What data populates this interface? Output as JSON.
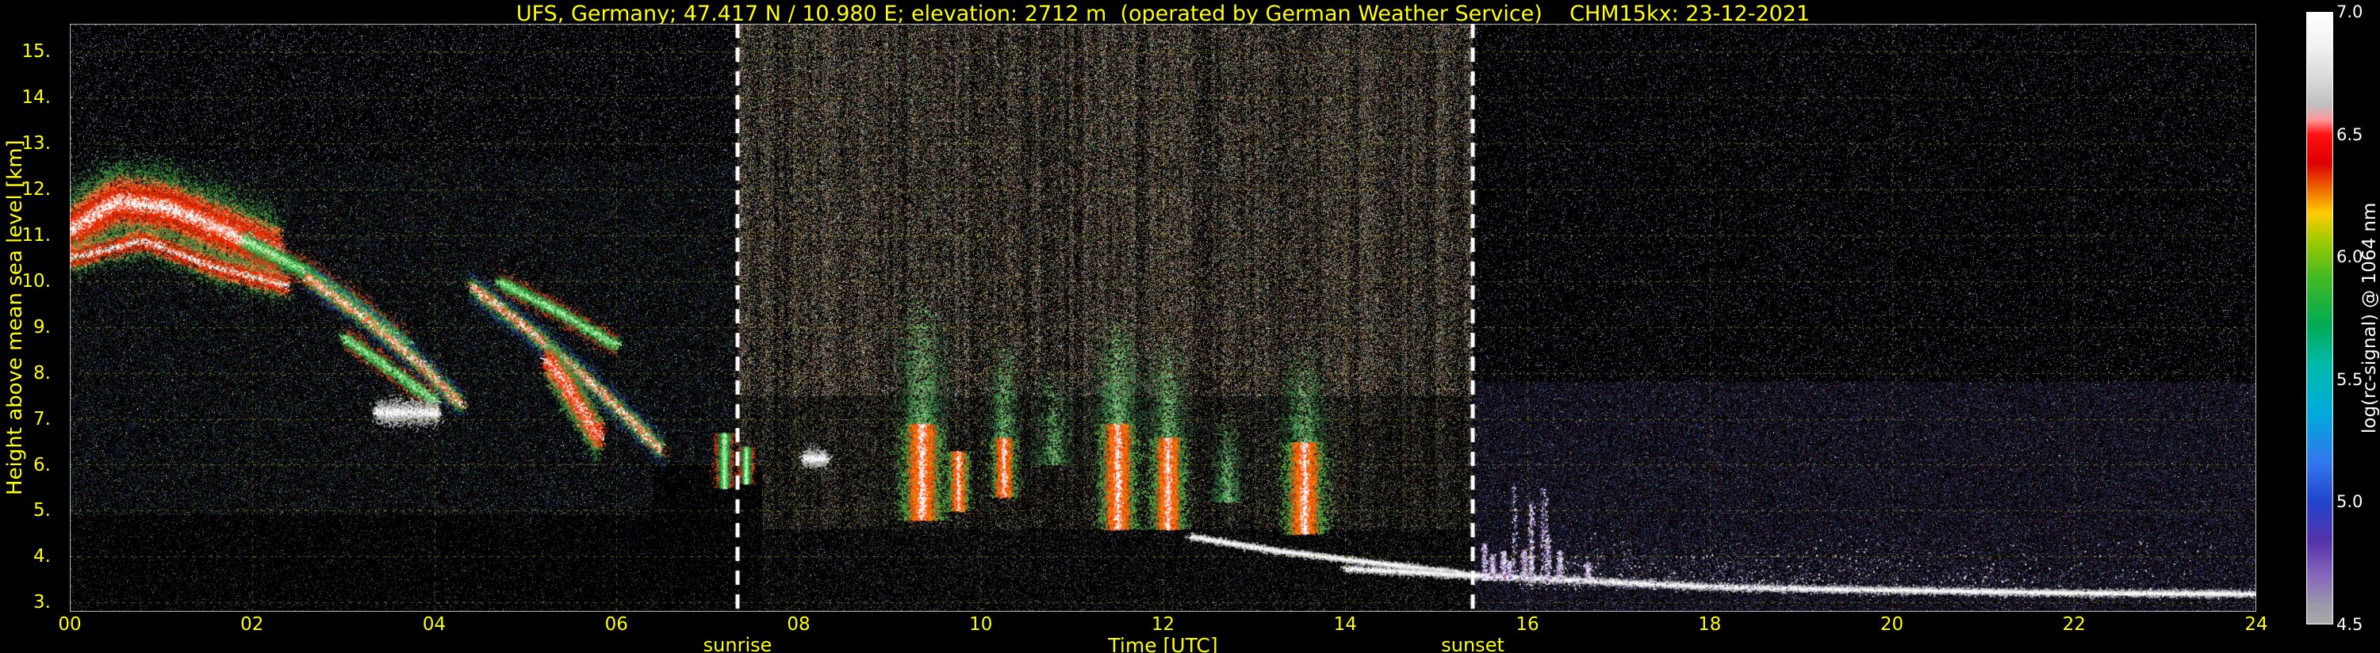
{
  "chart_data": {
    "type": "heatmap",
    "title": "UFS, Germany; 47.417 N / 10.980 E; elevation: 2712 m  (operated by German Weather Service)    CHM15kx: 23-12-2021",
    "xlabel": "Time [UTC]",
    "ylabel": "Height above mean sea level [km]",
    "x_range": [
      0,
      24
    ],
    "y_range_km": [
      2.8,
      15.6
    ],
    "grid": {
      "color": "#c8c800",
      "style": "dashed"
    },
    "x_ticks": [
      {
        "value": 0,
        "label": "00"
      },
      {
        "value": 2,
        "label": "02"
      },
      {
        "value": 4,
        "label": "04"
      },
      {
        "value": 6,
        "label": "06"
      },
      {
        "value": 8,
        "label": "08"
      },
      {
        "value": 10,
        "label": "10"
      },
      {
        "value": 12,
        "label": "12"
      },
      {
        "value": 14,
        "label": "14"
      },
      {
        "value": 16,
        "label": "16"
      },
      {
        "value": 18,
        "label": "18"
      },
      {
        "value": 20,
        "label": "20"
      },
      {
        "value": 22,
        "label": "22"
      },
      {
        "value": 24,
        "label": "24"
      }
    ],
    "y_ticks": [
      {
        "value": 15,
        "label": "15."
      },
      {
        "value": 14,
        "label": "14."
      },
      {
        "value": 13,
        "label": "13."
      },
      {
        "value": 12,
        "label": "12."
      },
      {
        "value": 11,
        "label": "11."
      },
      {
        "value": 10,
        "label": "10."
      },
      {
        "value": 9,
        "label": "9."
      },
      {
        "value": 8,
        "label": "8."
      },
      {
        "value": 7,
        "label": "7."
      },
      {
        "value": 6,
        "label": "6."
      },
      {
        "value": 5,
        "label": "5."
      },
      {
        "value": 4,
        "label": "4."
      },
      {
        "value": 3,
        "label": "3."
      }
    ],
    "sun": {
      "sunrise_hour": 7.33,
      "sunset_hour": 15.4,
      "sunrise_label": "sunrise",
      "sunset_label": "sunset",
      "line_color": "#ffffff"
    },
    "colorbar": {
      "label": "log(rc-signal) @ 1064 nm",
      "range": [
        4.5,
        7.0
      ],
      "tick_values": [
        7.0,
        6.5,
        6.0,
        5.5,
        5.0,
        4.5
      ],
      "tick_labels": [
        "7.0",
        "6.5",
        "6.0",
        "5.5",
        "5.0",
        "4.5"
      ],
      "stops": [
        {
          "v": 7.0,
          "c": "#ffffff"
        },
        {
          "v": 6.85,
          "c": "#f0f0f0"
        },
        {
          "v": 6.72,
          "c": "#d8d8d8"
        },
        {
          "v": 6.62,
          "c": "#bfbfbf"
        },
        {
          "v": 6.56,
          "c": "#ff9999"
        },
        {
          "v": 6.5,
          "c": "#ff1111"
        },
        {
          "v": 6.38,
          "c": "#dd0000"
        },
        {
          "v": 6.28,
          "c": "#ee6600"
        },
        {
          "v": 6.18,
          "c": "#ffcc00"
        },
        {
          "v": 6.08,
          "c": "#aacc00"
        },
        {
          "v": 5.92,
          "c": "#44bb22"
        },
        {
          "v": 5.72,
          "c": "#00aa55"
        },
        {
          "v": 5.56,
          "c": "#00bbaa"
        },
        {
          "v": 5.36,
          "c": "#00aadd"
        },
        {
          "v": 5.16,
          "c": "#3377ee"
        },
        {
          "v": 5.0,
          "c": "#2244cc"
        },
        {
          "v": 4.84,
          "c": "#5533aa"
        },
        {
          "v": 4.7,
          "c": "#8866bb"
        },
        {
          "v": 4.58,
          "c": "#9999aa"
        },
        {
          "v": 4.5,
          "c": "#aaaaaa"
        }
      ]
    },
    "palettes": {
      "day": {
        "colors": [
          "#b49a78",
          "#cfcfcf",
          "#c08050",
          "#9aa050",
          "#4d9a4d",
          "#5868b8",
          "#aa4444",
          "#ffffff",
          "#46443a",
          "#807058"
        ],
        "weights": [
          0.17,
          0.12,
          0.1,
          0.09,
          0.09,
          0.07,
          0.08,
          0.05,
          0.14,
          0.09
        ]
      },
      "dayless": {
        "colors": [
          "#8a7a60",
          "#9a9a9a",
          "#a06a44",
          "#7a8a44",
          "#3d7a3d",
          "#4858a0",
          "#883838",
          "#cccccc",
          "#30302a"
        ],
        "weights": [
          0.15,
          0.12,
          0.1,
          0.1,
          0.1,
          0.08,
          0.09,
          0.04,
          0.22
        ]
      },
      "nightleft": {
        "colors": [
          "#26307c",
          "#50307c",
          "#2f7a3f",
          "#1f6a6a",
          "#7c2f2f",
          "#56565a",
          "#38a0a0",
          "#6a8a2f",
          "#ffffff"
        ],
        "weights": [
          0.2,
          0.14,
          0.14,
          0.11,
          0.12,
          0.12,
          0.06,
          0.08,
          0.03
        ]
      },
      "nightright": {
        "colors": [
          "#3a2455",
          "#282a72",
          "#5c2430",
          "#24503a",
          "#3c3c44",
          "#3452a2",
          "#70306a",
          "#2494a4",
          "#ffffff"
        ],
        "weights": [
          0.22,
          0.2,
          0.14,
          0.1,
          0.14,
          0.09,
          0.06,
          0.03,
          0.02
        ]
      },
      "sparse": {
        "colors": [
          "#888888",
          "#556699",
          "#446644",
          "#884444"
        ],
        "weights": [
          0.4,
          0.25,
          0.2,
          0.15
        ]
      },
      "sparseblue": {
        "colors": [
          "#ccccdd",
          "#5566bb",
          "#88aacc",
          "#777788"
        ],
        "weights": [
          0.35,
          0.3,
          0.15,
          0.2
        ]
      }
    },
    "noise_rules": [
      {
        "t": [
          6.4,
          7.6
        ],
        "h": [
          2.8,
          6.0
        ],
        "density": 0.05,
        "palette": "sparse"
      },
      {
        "t": [
          0,
          7.33
        ],
        "h": [
          12.6,
          15.6
        ],
        "density": 0.09,
        "palette": "sparseblue"
      },
      {
        "t": [
          0,
          7.33
        ],
        "h": [
          4.9,
          12.6
        ],
        "density": 0.22,
        "palette": "nightleft"
      },
      {
        "t": [
          0,
          7.33
        ],
        "h": [
          2.8,
          4.9
        ],
        "density": 0.055,
        "palette": "sparse"
      },
      {
        "t": [
          7.33,
          15.4
        ],
        "h": [
          7.5,
          15.6
        ],
        "density": 0.42,
        "palette": "day",
        "stripes": true
      },
      {
        "t": [
          7.33,
          15.4
        ],
        "h": [
          4.6,
          7.5
        ],
        "density": 0.3,
        "palette": "dayless",
        "stripes": true
      },
      {
        "t": [
          7.33,
          15.4
        ],
        "h": [
          2.8,
          4.6
        ],
        "density": 0.12,
        "palette": "sparse"
      },
      {
        "t": [
          15.4,
          24.01
        ],
        "h": [
          7.8,
          15.6
        ],
        "density": 0.07,
        "palette": "sparseblue"
      },
      {
        "t": [
          15.4,
          24.01
        ],
        "h": [
          2.8,
          7.8
        ],
        "density": 0.42,
        "palette": "nightright"
      }
    ],
    "feature_palettes": {
      "redcloud": [
        "#ffffff",
        "#ff3300",
        "#cc2200",
        "#ff8844",
        "#3f8f3f"
      ],
      "greenstreak": [
        "#ccffcc",
        "#55cc55",
        "#2f9f3f",
        "#1f6f2f",
        "#cc4422"
      ],
      "mixstreak": [
        "#ffffff",
        "#ff5522",
        "#55bb44",
        "#2f7f3f",
        "#224488"
      ],
      "white": [
        "#ffffff",
        "#eeeeee",
        "#bbbbbb"
      ],
      "plume": [
        "#ffffff",
        "#ff4400",
        "#ff8800",
        "#cc5522",
        "#55aa44"
      ],
      "greenhalo": [
        "#88cc88",
        "#55aa55",
        "#3f8f4f",
        "#2f6f3f",
        "#1f4f2f"
      ],
      "purplespike": [
        "#ffffff",
        "#ddddff",
        "#9977cc",
        "#5544aa",
        "#883355"
      ],
      "whitesparse": [
        "#ffffff",
        "#ccccdd",
        "#8877aa",
        "#554477"
      ]
    },
    "features": [
      {
        "label": "cirrus-cloud-band-early",
        "type": "streak",
        "pts": [
          [
            0.0,
            11.1
          ],
          [
            0.5,
            11.75
          ],
          [
            1.1,
            11.6
          ],
          [
            1.7,
            11.1
          ],
          [
            2.3,
            10.6
          ]
        ],
        "thick": 0.8,
        "n": 30000,
        "palette": "redcloud"
      },
      {
        "label": "cirrus-subband",
        "type": "streak",
        "pts": [
          [
            0.0,
            10.5
          ],
          [
            0.8,
            10.9
          ],
          [
            1.6,
            10.3
          ],
          [
            2.4,
            9.9
          ]
        ],
        "thick": 0.35,
        "n": 8000,
        "palette": "redcloud"
      },
      {
        "label": "fallstreak-1",
        "type": "streak",
        "pts": [
          [
            1.9,
            10.9
          ],
          [
            2.6,
            10.2
          ],
          [
            3.2,
            9.4
          ],
          [
            3.7,
            8.6
          ]
        ],
        "thick": 0.3,
        "n": 7000,
        "palette": "greenstreak"
      },
      {
        "label": "fallstreak-2",
        "type": "streak",
        "pts": [
          [
            2.6,
            10.1
          ],
          [
            3.3,
            9.1
          ],
          [
            3.9,
            8.1
          ],
          [
            4.3,
            7.3
          ]
        ],
        "thick": 0.28,
        "n": 7000,
        "palette": "mixstreak"
      },
      {
        "label": "fallstreak-3",
        "type": "streak",
        "pts": [
          [
            3.0,
            8.8
          ],
          [
            3.5,
            8.1
          ],
          [
            4.0,
            7.4
          ]
        ],
        "thick": 0.22,
        "n": 4000,
        "palette": "greenstreak"
      },
      {
        "label": "small-white-clouds",
        "type": "blobrow",
        "t0": 3.35,
        "t1": 4.05,
        "h": 7.15,
        "thick": 0.14,
        "n": 2600,
        "blobs": 8,
        "palette": "white"
      },
      {
        "label": "descending-streak",
        "type": "streak",
        "pts": [
          [
            4.4,
            9.9
          ],
          [
            5.0,
            9.0
          ],
          [
            5.6,
            8.0
          ],
          [
            6.2,
            6.9
          ],
          [
            6.5,
            6.3
          ]
        ],
        "thick": 0.3,
        "n": 9000,
        "palette": "mixstreak"
      },
      {
        "label": "upper-streak",
        "type": "streak",
        "pts": [
          [
            4.7,
            10.0
          ],
          [
            5.4,
            9.3
          ],
          [
            6.0,
            8.6
          ]
        ],
        "thick": 0.22,
        "n": 4500,
        "palette": "greenstreak"
      },
      {
        "label": "bright-cloud-core",
        "type": "streak",
        "pts": [
          [
            5.25,
            8.3
          ],
          [
            5.55,
            7.4
          ],
          [
            5.8,
            6.6
          ]
        ],
        "thick": 0.4,
        "n": 12000,
        "palette": "redcloud"
      },
      {
        "label": "sunrise-wisp-1",
        "type": "column",
        "t": 7.18,
        "w": 0.1,
        "h0": 5.5,
        "h1": 6.7,
        "n": 2200,
        "palette": "greenstreak"
      },
      {
        "label": "sunrise-wisp-2",
        "type": "column",
        "t": 7.42,
        "w": 0.08,
        "h0": 5.6,
        "h1": 6.4,
        "n": 1500,
        "palette": "greenstreak"
      },
      {
        "label": "small-cloud-0810",
        "type": "blobrow",
        "t0": 8.05,
        "t1": 8.3,
        "h": 6.15,
        "thick": 0.1,
        "n": 900,
        "blobs": 3,
        "palette": "white"
      },
      {
        "label": "plume-0930",
        "type": "column",
        "t": 9.35,
        "w": 0.22,
        "h0": 4.8,
        "h1": 6.9,
        "n": 9000,
        "palette": "plume"
      },
      {
        "label": "plume-0930-halo",
        "type": "column",
        "t": 9.35,
        "w": 0.32,
        "h0": 6.9,
        "h1": 9.6,
        "n": 5200,
        "palette": "greenhalo",
        "fade": true
      },
      {
        "label": "plume-0945",
        "type": "column",
        "t": 9.75,
        "w": 0.12,
        "h0": 5.0,
        "h1": 6.3,
        "n": 2600,
        "palette": "plume"
      },
      {
        "label": "plume-1015",
        "type": "column",
        "t": 10.25,
        "w": 0.14,
        "h0": 5.3,
        "h1": 6.6,
        "n": 2800,
        "palette": "plume"
      },
      {
        "label": "plume-1015-halo",
        "type": "column",
        "t": 10.25,
        "w": 0.2,
        "h0": 6.6,
        "h1": 8.8,
        "n": 2600,
        "palette": "greenhalo",
        "fade": true
      },
      {
        "label": "halo-1050",
        "type": "column",
        "t": 10.8,
        "w": 0.26,
        "h0": 6.0,
        "h1": 8.2,
        "n": 2600,
        "palette": "greenhalo",
        "fade": true
      },
      {
        "label": "plume-1130",
        "type": "column",
        "t": 11.5,
        "w": 0.2,
        "h0": 4.6,
        "h1": 6.9,
        "n": 8500,
        "palette": "plume"
      },
      {
        "label": "plume-1130-halo",
        "type": "column",
        "t": 11.5,
        "w": 0.3,
        "h0": 6.9,
        "h1": 9.4,
        "n": 4200,
        "palette": "greenhalo",
        "fade": true
      },
      {
        "label": "plume-1200",
        "type": "column",
        "t": 12.05,
        "w": 0.18,
        "h0": 4.6,
        "h1": 6.6,
        "n": 7000,
        "palette": "plume"
      },
      {
        "label": "plume-1200-halo",
        "type": "column",
        "t": 12.05,
        "w": 0.26,
        "h0": 6.6,
        "h1": 8.8,
        "n": 3200,
        "palette": "greenhalo",
        "fade": true
      },
      {
        "label": "halo-1240",
        "type": "column",
        "t": 12.7,
        "w": 0.2,
        "h0": 5.2,
        "h1": 7.2,
        "n": 2400,
        "palette": "greenhalo",
        "fade": true
      },
      {
        "label": "plume-1335",
        "type": "column",
        "t": 13.55,
        "w": 0.22,
        "h0": 4.5,
        "h1": 6.5,
        "n": 8000,
        "palette": "plume"
      },
      {
        "label": "plume-1335-halo",
        "type": "column",
        "t": 13.55,
        "w": 0.3,
        "h0": 6.5,
        "h1": 8.6,
        "n": 3400,
        "palette": "greenhalo",
        "fade": true
      },
      {
        "label": "aerosol-top-descending",
        "type": "streak",
        "pts": [
          [
            12.3,
            4.45
          ],
          [
            13.2,
            4.15
          ],
          [
            14.2,
            3.9
          ],
          [
            15.3,
            3.65
          ]
        ],
        "thick": 0.07,
        "n": 5000,
        "palette": "white"
      },
      {
        "label": "boundary-layer-top",
        "type": "streak",
        "pts": [
          [
            14.0,
            3.75
          ],
          [
            15.4,
            3.6
          ],
          [
            16.5,
            3.5
          ],
          [
            18.0,
            3.35
          ],
          [
            20.0,
            3.28
          ],
          [
            22.0,
            3.22
          ],
          [
            24.0,
            3.2
          ]
        ],
        "thick": 0.08,
        "n": 16000,
        "palette": "white"
      },
      {
        "label": "evening-spikes",
        "type": "spikes",
        "t0": 15.5,
        "t1": 16.7,
        "hbase": 3.5,
        "hmax": 5.6,
        "count": 14,
        "palette": "purplespike"
      },
      {
        "label": "evening-low-scatter",
        "type": "scatter",
        "t0": 15.9,
        "t1": 24.0,
        "h0": 3.3,
        "h1": 4.6,
        "n": 9000,
        "t_fade": true,
        "palette": "whitesparse"
      }
    ]
  }
}
